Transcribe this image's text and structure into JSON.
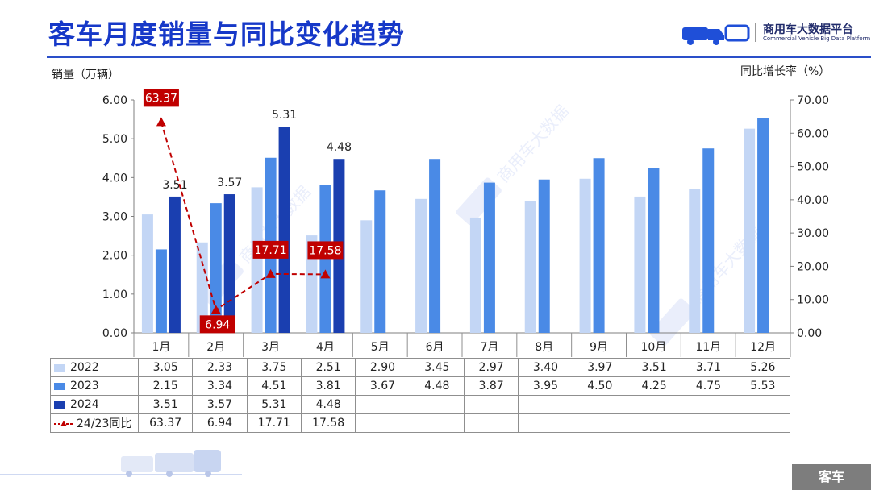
{
  "slide": {
    "title": "客车月度销量与同比变化趋势",
    "logo_text": "商用车大数据平台",
    "logo_subtext": "Commercial Vehicle Big Data Platform",
    "footer_label": "客车"
  },
  "colors": {
    "title": "#1638c8",
    "series_2022": "#c3d6f5",
    "series_2023": "#4a8ae6",
    "series_2024": "#1a3fb0",
    "yoy_line": "#c00000"
  },
  "chart_data": {
    "type": "bar",
    "ylabel": "销量（万辆）",
    "y2label": "同比增长率（%）",
    "ylim": [
      0,
      6
    ],
    "y2lim": [
      0,
      70
    ],
    "yticks": [
      "0.00",
      "1.00",
      "2.00",
      "3.00",
      "4.00",
      "5.00",
      "6.00"
    ],
    "y2ticks": [
      "0.00",
      "10.00",
      "20.00",
      "30.00",
      "40.00",
      "50.00",
      "60.00",
      "70.00"
    ],
    "categories": [
      "1月",
      "2月",
      "3月",
      "4月",
      "5月",
      "6月",
      "7月",
      "8月",
      "9月",
      "10月",
      "11月",
      "12月"
    ],
    "series": [
      {
        "name": "2022",
        "values": [
          3.05,
          2.33,
          3.75,
          2.51,
          2.9,
          3.45,
          2.97,
          3.4,
          3.97,
          3.51,
          3.71,
          5.26
        ]
      },
      {
        "name": "2023",
        "values": [
          2.15,
          3.34,
          4.51,
          3.81,
          3.67,
          4.48,
          3.87,
          3.95,
          4.5,
          4.25,
          4.75,
          5.53
        ]
      },
      {
        "name": "2024",
        "values": [
          3.51,
          3.57,
          5.31,
          4.48,
          null,
          null,
          null,
          null,
          null,
          null,
          null,
          null
        ]
      }
    ],
    "line_series": {
      "name": "24/23同比",
      "axis": "right",
      "values": [
        63.37,
        6.94,
        17.71,
        17.58,
        null,
        null,
        null,
        null,
        null,
        null,
        null,
        null
      ]
    },
    "data_labels_2024": [
      "3.51",
      "3.57",
      "5.31",
      "4.48"
    ],
    "data_labels_yoy": [
      "63.37",
      "6.94",
      "17.71",
      "17.58"
    ],
    "table": {
      "rows": [
        {
          "legend": "2022",
          "cells": [
            "3.05",
            "2.33",
            "3.75",
            "2.51",
            "2.90",
            "3.45",
            "2.97",
            "3.40",
            "3.97",
            "3.51",
            "3.71",
            "5.26"
          ]
        },
        {
          "legend": "2023",
          "cells": [
            "2.15",
            "3.34",
            "4.51",
            "3.81",
            "3.67",
            "4.48",
            "3.87",
            "3.95",
            "4.50",
            "4.25",
            "4.75",
            "5.53"
          ]
        },
        {
          "legend": "2024",
          "cells": [
            "3.51",
            "3.57",
            "5.31",
            "4.48",
            "",
            "",
            "",
            "",
            "",
            "",
            "",
            ""
          ]
        },
        {
          "legend": "24/23同比",
          "cells": [
            "63.37",
            "6.94",
            "17.71",
            "17.58",
            "",
            "",
            "",
            "",
            "",
            "",
            "",
            ""
          ]
        }
      ]
    }
  }
}
